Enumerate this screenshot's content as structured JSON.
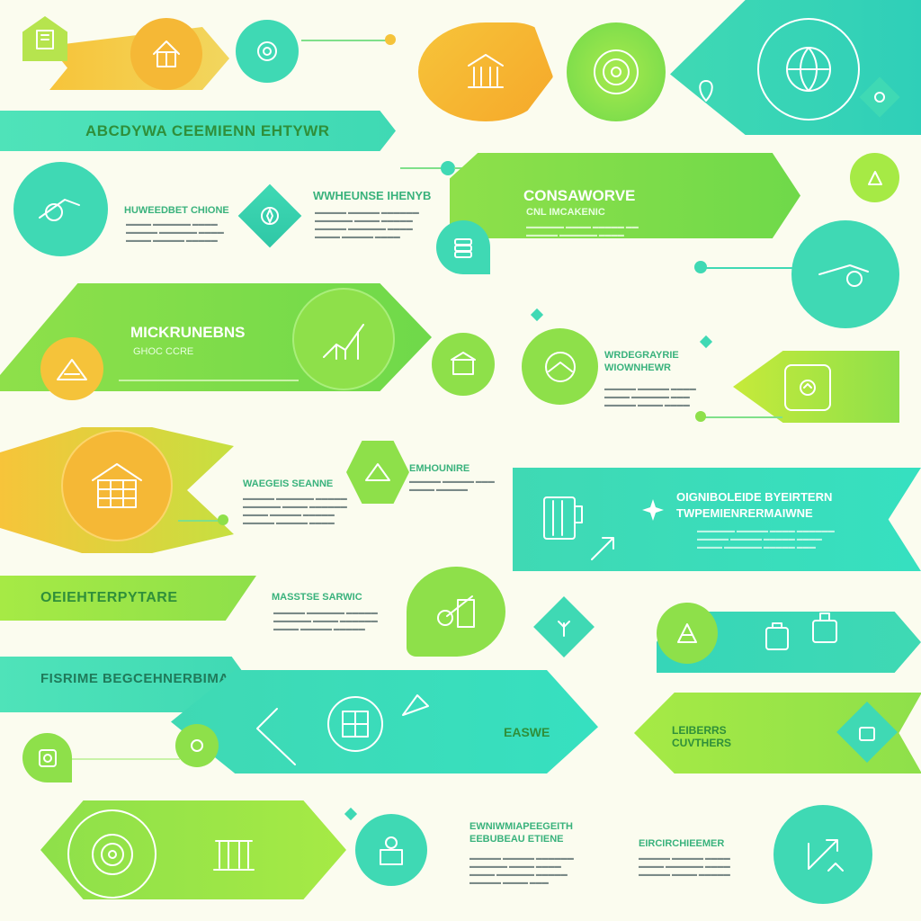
{
  "colors": {
    "yellow": "#f7c43a",
    "green": "#8ee04a",
    "teal": "#3fd9b4",
    "title_text": "#2f8f3a",
    "body_text": "#7a8a88"
  },
  "banners": {
    "b1": "ABCDYWA CEEMIENN EHTYWR",
    "b2": "CONSAWORVE",
    "b2_sub": "CNL IMCAKENIC",
    "b3": "MICKRUNEBNS",
    "b3_sub": "GHOC CCRE",
    "b4": "OIGNIBOLEIDE BYEIRTERN",
    "b4_sub": "TWPEMIENRERMAIWNE",
    "b5": "OEIEHTERPYTARE",
    "b6": "FISRIME BEGCEHNERBIMA",
    "b7": "EASWE",
    "b8": "EMHOUNIRE"
  },
  "labels": {
    "l1": "HUWEEDBET CHIONE",
    "l2": "WWHEUNSE IHENYB",
    "l3": "WRDEGRAYRIE WIOWNHEWR",
    "l4": "WAEGEIS SEANNE",
    "l5": "MASSTSE SARWIC",
    "l6": "LEIBERRS CUVTHERS",
    "l7": "EWNIWMIAPEEGEITH EEBUBEAU ETIENE",
    "l8": "EIRCIRCHIEEMER"
  },
  "icons": [
    "building-icon",
    "house-icon",
    "gear-icon",
    "pillar-building-icon",
    "target-icon",
    "globe-icon",
    "location-icon",
    "tools-icon",
    "chart-growth-icon",
    "mountain-icon",
    "bar-chart-icon",
    "compass-icon",
    "house-grid-icon",
    "cup-icon",
    "ruler-icon",
    "briefcase-icon",
    "arrow-up-right-icon",
    "stack-icon",
    "puzzle-icon"
  ]
}
